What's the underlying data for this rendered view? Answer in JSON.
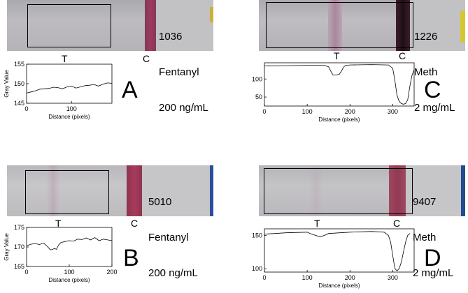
{
  "panels": [
    {
      "letter": "A",
      "sample_id": "1036",
      "drug": "Fentanyl",
      "concentration": "200 ng/mL",
      "marker_t": "T",
      "marker_c": "C",
      "chart_data": {
        "type": "line",
        "xlabel": "Distance (pixels)",
        "ylabel": "Gray Value",
        "xlim": [
          0,
          190
        ],
        "ylim": [
          145,
          155
        ],
        "xticks": [
          0,
          100
        ],
        "yticks": [
          145,
          150,
          155
        ],
        "x": [
          0,
          10,
          20,
          30,
          40,
          50,
          60,
          70,
          80,
          90,
          100,
          110,
          120,
          130,
          140,
          150,
          160,
          170,
          180,
          190
        ],
        "y": [
          147.6,
          147.9,
          148.2,
          148.6,
          148.7,
          148.8,
          149.1,
          149.0,
          148.7,
          149.2,
          149.4,
          148.9,
          149.2,
          149.5,
          149.6,
          149.8,
          149.4,
          149.9,
          150.2,
          150.1
        ]
      }
    },
    {
      "letter": "B",
      "sample_id": "5010",
      "drug": "Fentanyl",
      "concentration": "200 ng/mL",
      "marker_t": "T",
      "marker_c": "C",
      "chart_data": {
        "type": "line",
        "xlabel": "Distance (pixels)",
        "ylabel": "Gray Value",
        "xlim": [
          0,
          200
        ],
        "ylim": [
          165,
          175
        ],
        "xticks": [
          0,
          100,
          200
        ],
        "yticks": [
          165,
          170,
          175
        ],
        "x": [
          0,
          10,
          20,
          30,
          40,
          50,
          55,
          60,
          65,
          70,
          75,
          80,
          90,
          100,
          110,
          120,
          130,
          140,
          150,
          160,
          170,
          180,
          190,
          200
        ],
        "y": [
          170.3,
          170.7,
          170.9,
          170.6,
          171.0,
          170.0,
          169.3,
          169.3,
          169.6,
          169.4,
          170.5,
          171.1,
          171.4,
          171.6,
          171.5,
          172.0,
          171.9,
          172.3,
          171.8,
          172.4,
          171.6,
          172.0,
          171.8,
          171.6
        ]
      }
    },
    {
      "letter": "C",
      "sample_id": "1226",
      "drug": "Meth",
      "concentration": "2 mg/mL",
      "marker_t": "T",
      "marker_c": "C",
      "chart_data": {
        "type": "line",
        "xlabel": "Distance (pixels)",
        "ylabel": "",
        "xlim": [
          0,
          350
        ],
        "ylim": [
          25,
          145
        ],
        "xticks": [
          0,
          100,
          200,
          300
        ],
        "yticks": [
          50,
          100
        ],
        "x": [
          0,
          50,
          100,
          140,
          150,
          155,
          160,
          165,
          170,
          175,
          180,
          185,
          190,
          200,
          250,
          290,
          300,
          305,
          310,
          315,
          320,
          325,
          330,
          335,
          340,
          345,
          350
        ],
        "y": [
          136,
          137,
          138,
          138,
          134,
          122,
          112,
          111,
          112,
          113,
          122,
          133,
          138,
          139,
          140,
          139,
          130,
          95,
          55,
          38,
          32,
          30,
          32,
          42,
          80,
          110,
          125
        ]
      }
    },
    {
      "letter": "D",
      "sample_id": "9407",
      "drug": "Meth",
      "concentration": "2 mg/mL",
      "marker_t": "T",
      "marker_c": "C",
      "chart_data": {
        "type": "line",
        "xlabel": "Distance (pixels)",
        "ylabel": "",
        "xlim": [
          0,
          350
        ],
        "ylim": [
          95,
          160
        ],
        "xticks": [
          0,
          100,
          200,
          300
        ],
        "yticks": [
          100,
          150
        ],
        "x": [
          0,
          50,
          100,
          110,
          120,
          130,
          140,
          150,
          200,
          250,
          280,
          290,
          295,
          300,
          305,
          310,
          315,
          320,
          325,
          330,
          335,
          340
        ],
        "y": [
          152,
          154,
          155,
          152,
          150,
          148,
          150,
          153,
          155,
          156,
          155,
          150,
          140,
          120,
          100,
          97,
          100,
          110,
          125,
          140,
          150,
          153
        ]
      }
    }
  ]
}
